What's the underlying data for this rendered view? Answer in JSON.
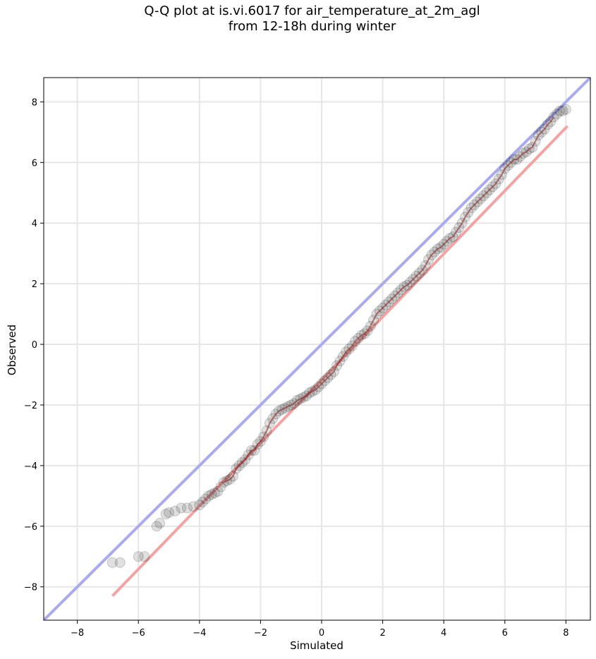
{
  "chart_data": {
    "type": "scatter",
    "title_line1": "Q-Q plot at is.vi.6017 for air_temperature_at_2m_agl",
    "title_line2": "from 12-18h during winter",
    "xlabel": "Simulated",
    "ylabel": "Observed",
    "xlim": [
      -9.1,
      8.8
    ],
    "ylim": [
      -9.1,
      8.8
    ],
    "xticks": [
      -8,
      -6,
      -4,
      -2,
      0,
      2,
      4,
      6,
      8
    ],
    "yticks": [
      -8,
      -6,
      -4,
      -2,
      0,
      2,
      4,
      6,
      8
    ],
    "grid": true,
    "colors": {
      "points": "#000000",
      "identity_line": "#aaaaee",
      "fit_line": "#f4a3a3",
      "trend_line": "#8b1a1a"
    },
    "identity_line": {
      "x": [
        -9.1,
        8.8
      ],
      "y": [
        -9.1,
        8.8
      ]
    },
    "fit_line": {
      "x": [
        -6.85,
        8.05
      ],
      "y": [
        -8.3,
        7.2
      ]
    },
    "points": {
      "x": [
        -6.85,
        -6.6,
        -6.0,
        -5.8,
        -5.4,
        -5.3,
        -5.1,
        -5.0,
        -4.8,
        -4.6,
        -4.4,
        -4.2,
        -4.0,
        -3.9,
        -3.8,
        -3.7,
        -3.6,
        -3.5,
        -3.4,
        -3.3,
        -3.2,
        -3.1,
        -3.0,
        -2.9,
        -2.8,
        -2.7,
        -2.6,
        -2.5,
        -2.4,
        -2.3,
        -2.2,
        -2.1,
        -2.0,
        -1.9,
        -1.8,
        -1.7,
        -1.6,
        -1.5,
        -1.4,
        -1.3,
        -1.2,
        -1.1,
        -1.0,
        -0.9,
        -0.8,
        -0.7,
        -0.6,
        -0.5,
        -0.4,
        -0.3,
        -0.2,
        -0.1,
        0.0,
        0.1,
        0.2,
        0.3,
        0.4,
        0.5,
        0.6,
        0.7,
        0.8,
        0.9,
        1.0,
        1.1,
        1.2,
        1.3,
        1.4,
        1.5,
        1.6,
        1.7,
        1.8,
        1.9,
        2.0,
        2.1,
        2.2,
        2.3,
        2.4,
        2.5,
        2.6,
        2.7,
        2.8,
        2.9,
        3.0,
        3.1,
        3.2,
        3.3,
        3.4,
        3.5,
        3.6,
        3.7,
        3.8,
        3.9,
        4.0,
        4.1,
        4.2,
        4.3,
        4.4,
        4.5,
        4.6,
        4.7,
        4.8,
        4.9,
        5.0,
        5.1,
        5.2,
        5.3,
        5.4,
        5.5,
        5.6,
        5.7,
        5.8,
        5.9,
        6.0,
        6.1,
        6.2,
        6.3,
        6.4,
        6.5,
        6.6,
        6.7,
        6.8,
        6.9,
        7.0,
        7.1,
        7.2,
        7.3,
        7.4,
        7.5,
        7.6,
        7.7,
        7.8,
        7.9,
        8.0
      ],
      "y": [
        -7.2,
        -7.2,
        -7.0,
        -7.0,
        -6.0,
        -5.9,
        -5.6,
        -5.55,
        -5.5,
        -5.4,
        -5.4,
        -5.35,
        -5.3,
        -5.2,
        -5.1,
        -5.0,
        -4.95,
        -4.9,
        -4.85,
        -4.7,
        -4.55,
        -4.5,
        -4.45,
        -4.35,
        -4.1,
        -4.0,
        -3.9,
        -3.8,
        -3.65,
        -3.5,
        -3.5,
        -3.3,
        -3.2,
        -3.05,
        -2.85,
        -2.6,
        -2.45,
        -2.3,
        -2.2,
        -2.15,
        -2.1,
        -2.05,
        -2.0,
        -1.95,
        -1.85,
        -1.8,
        -1.75,
        -1.7,
        -1.6,
        -1.55,
        -1.5,
        -1.4,
        -1.3,
        -1.2,
        -1.1,
        -1.0,
        -0.9,
        -0.7,
        -0.55,
        -0.4,
        -0.25,
        -0.15,
        -0.05,
        0.1,
        0.2,
        0.3,
        0.35,
        0.45,
        0.6,
        0.8,
        1.0,
        1.1,
        1.2,
        1.3,
        1.4,
        1.5,
        1.6,
        1.7,
        1.8,
        1.9,
        1.95,
        2.05,
        2.15,
        2.25,
        2.35,
        2.45,
        2.6,
        2.8,
        2.95,
        3.05,
        3.15,
        3.2,
        3.3,
        3.4,
        3.5,
        3.55,
        3.7,
        3.85,
        4.0,
        4.2,
        4.35,
        4.5,
        4.6,
        4.7,
        4.8,
        4.9,
        5.0,
        5.1,
        5.2,
        5.3,
        5.45,
        5.6,
        5.8,
        5.9,
        6.0,
        6.1,
        6.1,
        6.2,
        6.3,
        6.35,
        6.45,
        6.5,
        6.7,
        6.9,
        7.0,
        7.1,
        7.25,
        7.35,
        7.5,
        7.6,
        7.7,
        7.7,
        7.75
      ]
    }
  }
}
